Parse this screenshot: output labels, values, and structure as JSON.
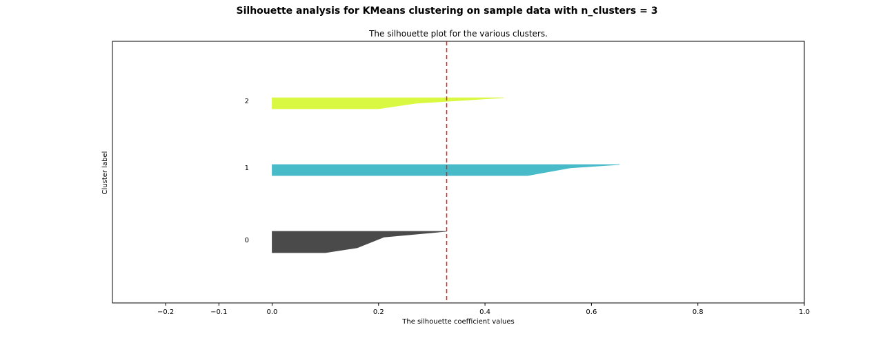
{
  "suptitle": "Silhouette analysis for KMeans clustering on sample data with n_clusters = 3",
  "chart_data": {
    "type": "area",
    "title": "The silhouette plot for the various clusters.",
    "xlabel": "The silhouette coefficient values",
    "ylabel": "Cluster label",
    "xlim": [
      -0.3,
      1.0
    ],
    "xticks": [
      -0.2,
      -0.1,
      0.0,
      0.2,
      0.4,
      0.6,
      0.8,
      1.0
    ],
    "xtick_labels": [
      "−0.2",
      "−0.1",
      "0.0",
      "0.2",
      "0.4",
      "0.6",
      "0.8",
      "1.0"
    ],
    "average_silhouette_score": 0.328,
    "grid": false,
    "clusters": [
      {
        "label": "0",
        "color": "#4a4a4a",
        "profile": [
          [
            0.328,
            0.0
          ],
          [
            0.21,
            0.27
          ],
          [
            0.16,
            0.77
          ],
          [
            0.1,
            1.0
          ],
          [
            0.0,
            1.0
          ]
        ]
      },
      {
        "label": "1",
        "color": "#48bbc8",
        "profile": [
          [
            0.653,
            0.0
          ],
          [
            0.56,
            0.3
          ],
          [
            0.48,
            1.0
          ],
          [
            0.0,
            1.0
          ]
        ]
      },
      {
        "label": "2",
        "color": "#d8f842",
        "profile": [
          [
            0.435,
            0.0
          ],
          [
            0.27,
            0.5
          ],
          [
            0.2,
            1.0
          ],
          [
            0.0,
            1.0
          ]
        ]
      }
    ]
  }
}
